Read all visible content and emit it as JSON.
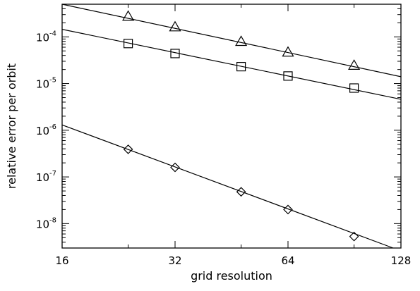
{
  "chart_data": {
    "type": "scatter",
    "title": "",
    "xlabel": "grid resolution",
    "ylabel": "relative error per orbit",
    "xscale": "log2",
    "yscale": "log10",
    "xlim": [
      16,
      128
    ],
    "ylim": [
      3e-09,
      0.0005
    ],
    "grid": false,
    "x_ticks": [
      16,
      32,
      64,
      128
    ],
    "x_tick_labels": [
      "16",
      "32",
      "64",
      "128"
    ],
    "y_ticks": [
      1e-08,
      1e-07,
      1e-06,
      1e-05,
      0.0001
    ],
    "y_tick_labels": [
      {
        "base": "10",
        "exp": "-8"
      },
      {
        "base": "10",
        "exp": "-7"
      },
      {
        "base": "10",
        "exp": "-6"
      },
      {
        "base": "10",
        "exp": "-5"
      },
      {
        "base": "10",
        "exp": "-4"
      }
    ],
    "series": [
      {
        "marker": "triangle",
        "x": [
          24,
          32,
          48,
          64,
          96
        ],
        "y": [
          0.00027,
          0.00016,
          7.8e-05,
          4.6e-05,
          2.4e-05
        ],
        "fit_line": {
          "x": [
            16,
            128
          ],
          "y": [
            0.0005,
            1.4e-05
          ]
        }
      },
      {
        "marker": "square",
        "x": [
          24,
          32,
          48,
          64,
          96
        ],
        "y": [
          7.2e-05,
          4.4e-05,
          2.3e-05,
          1.45e-05,
          8e-06
        ],
        "fit_line": {
          "x": [
            16,
            128
          ],
          "y": [
            0.000145,
            4.6e-06
          ]
        }
      },
      {
        "marker": "diamond",
        "x": [
          24,
          32,
          48,
          64,
          96
        ],
        "y": [
          3.9e-07,
          1.6e-07,
          4.8e-08,
          2e-08,
          5.3e-09
        ],
        "fit_line": {
          "x": [
            16,
            128
          ],
          "y": [
            1.3e-06,
            2.6e-09
          ]
        }
      }
    ]
  }
}
